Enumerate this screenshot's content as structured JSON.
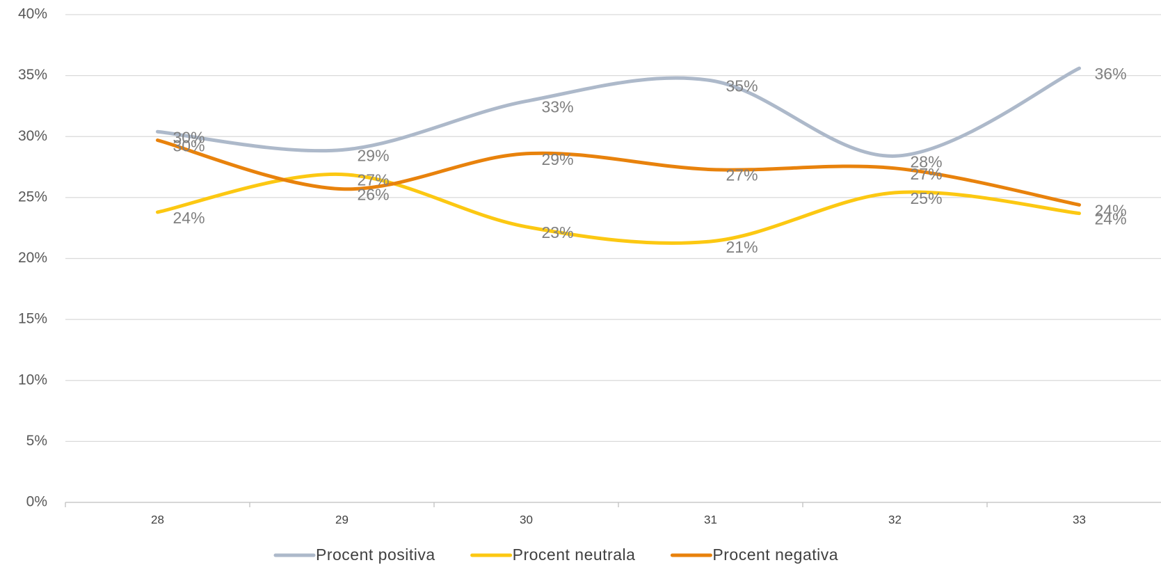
{
  "chart_data": {
    "type": "line",
    "categories": [
      "28",
      "29",
      "30",
      "31",
      "32",
      "33"
    ],
    "ylim": [
      0,
      40
    ],
    "yticks": [
      {
        "value": 0,
        "label": "0%"
      },
      {
        "value": 5,
        "label": "5%"
      },
      {
        "value": 10,
        "label": "10%"
      },
      {
        "value": 15,
        "label": "15%"
      },
      {
        "value": 20,
        "label": "20%"
      },
      {
        "value": 25,
        "label": "25%"
      },
      {
        "value": 30,
        "label": "30%"
      },
      {
        "value": 35,
        "label": "35%"
      },
      {
        "value": 40,
        "label": "40%"
      }
    ],
    "grid": true,
    "legend": "bottom",
    "series": [
      {
        "name": "Procent positiva",
        "color": "#adb9ca",
        "values": [
          30.4,
          28.9,
          32.9,
          34.6,
          28.4,
          35.6
        ],
        "value_labels": [
          "30%",
          "29%",
          "33%",
          "35%",
          "28%",
          "36%"
        ]
      },
      {
        "name": "Procent neutrala",
        "color": "#fcc812",
        "values": [
          23.8,
          26.9,
          22.6,
          21.4,
          25.4,
          23.7
        ],
        "value_labels": [
          "24%",
          "27%",
          "23%",
          "21%",
          "25%",
          "24%"
        ]
      },
      {
        "name": "Procent negativa",
        "color": "#e8820c",
        "values": [
          29.7,
          25.7,
          28.6,
          27.3,
          27.4,
          24.4
        ],
        "value_labels": [
          "30%",
          "26%",
          "29%",
          "27%",
          "27%",
          "24%"
        ]
      }
    ]
  }
}
